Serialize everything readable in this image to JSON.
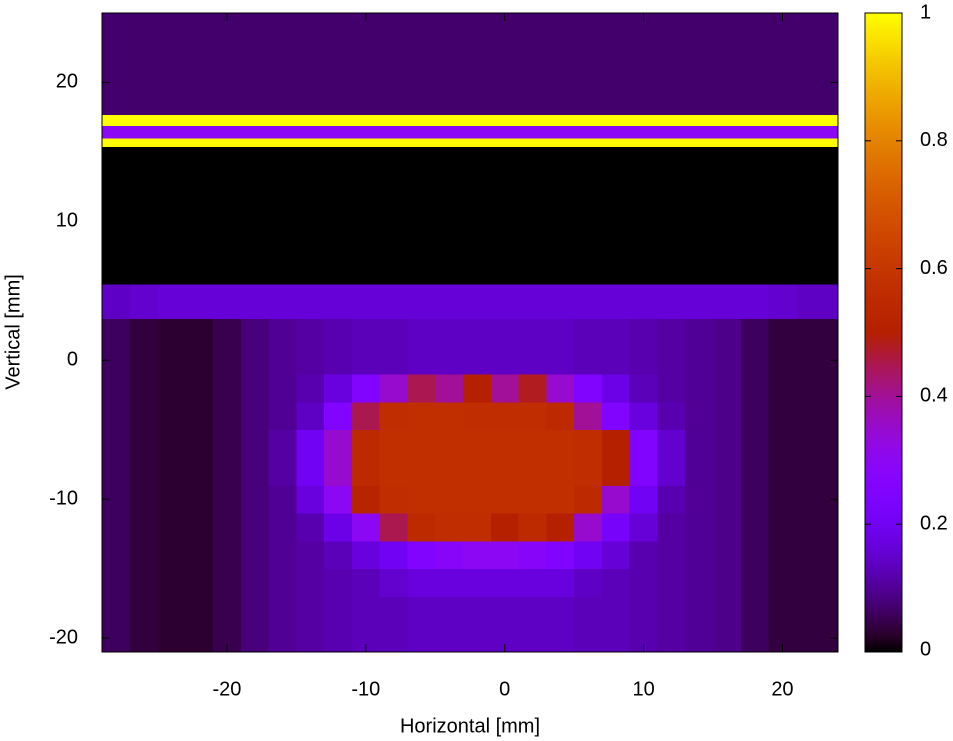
{
  "chart_data": {
    "type": "heatmap",
    "xlabel": "Horizontal [mm]",
    "ylabel": "Vertical [mm]",
    "xlim": [
      -29,
      24
    ],
    "ylim": [
      -21,
      25
    ],
    "xticks": [
      -20,
      -10,
      0,
      10,
      20
    ],
    "yticks": [
      -20,
      -10,
      0,
      10,
      20
    ],
    "clim": [
      0,
      1
    ],
    "cticks": [
      0,
      0.2,
      0.4,
      0.6,
      0.8,
      1
    ],
    "xbins": [
      -29,
      -27,
      -25,
      -23,
      -21,
      -19,
      -17,
      -15,
      -13,
      -11,
      -9,
      -7,
      -5,
      -3,
      -1,
      1,
      3,
      5,
      7,
      9,
      11,
      13,
      15,
      17,
      19,
      21,
      24
    ],
    "ybins": [
      -21,
      -19,
      -17,
      -15,
      -13,
      -11,
      -9,
      -7,
      -5,
      -3,
      -1,
      1,
      3,
      5.5,
      15.4,
      16,
      16.9,
      17.7,
      25
    ],
    "z": [
      [
        0.06,
        0.04,
        0.03,
        0.03,
        0.05,
        0.08,
        0.1,
        0.11,
        0.12,
        0.13,
        0.13,
        0.14,
        0.14,
        0.14,
        0.14,
        0.14,
        0.14,
        0.13,
        0.13,
        0.12,
        0.11,
        0.1,
        0.09,
        0.06,
        0.04,
        0.04
      ],
      [
        0.06,
        0.04,
        0.03,
        0.03,
        0.05,
        0.08,
        0.1,
        0.11,
        0.12,
        0.13,
        0.13,
        0.14,
        0.14,
        0.14,
        0.14,
        0.14,
        0.14,
        0.13,
        0.13,
        0.12,
        0.11,
        0.1,
        0.09,
        0.06,
        0.04,
        0.04
      ],
      [
        0.06,
        0.04,
        0.03,
        0.03,
        0.05,
        0.08,
        0.1,
        0.11,
        0.12,
        0.13,
        0.15,
        0.17,
        0.17,
        0.17,
        0.17,
        0.17,
        0.17,
        0.14,
        0.13,
        0.12,
        0.11,
        0.1,
        0.09,
        0.06,
        0.04,
        0.04
      ],
      [
        0.06,
        0.04,
        0.03,
        0.03,
        0.05,
        0.08,
        0.1,
        0.11,
        0.13,
        0.17,
        0.2,
        0.25,
        0.28,
        0.3,
        0.3,
        0.28,
        0.25,
        0.2,
        0.16,
        0.12,
        0.11,
        0.1,
        0.09,
        0.06,
        0.04,
        0.04
      ],
      [
        0.06,
        0.04,
        0.03,
        0.03,
        0.05,
        0.08,
        0.1,
        0.12,
        0.18,
        0.3,
        0.45,
        0.55,
        0.56,
        0.56,
        0.5,
        0.55,
        0.5,
        0.35,
        0.22,
        0.16,
        0.11,
        0.1,
        0.09,
        0.06,
        0.04,
        0.04
      ],
      [
        0.06,
        0.04,
        0.03,
        0.03,
        0.05,
        0.08,
        0.1,
        0.17,
        0.3,
        0.52,
        0.56,
        0.57,
        0.57,
        0.57,
        0.57,
        0.57,
        0.57,
        0.55,
        0.35,
        0.2,
        0.12,
        0.1,
        0.09,
        0.06,
        0.04,
        0.04
      ],
      [
        0.06,
        0.04,
        0.03,
        0.03,
        0.05,
        0.08,
        0.11,
        0.2,
        0.35,
        0.55,
        0.57,
        0.57,
        0.57,
        0.57,
        0.57,
        0.57,
        0.57,
        0.56,
        0.5,
        0.25,
        0.15,
        0.1,
        0.09,
        0.06,
        0.04,
        0.04
      ],
      [
        0.06,
        0.04,
        0.03,
        0.03,
        0.05,
        0.08,
        0.11,
        0.2,
        0.35,
        0.55,
        0.57,
        0.57,
        0.57,
        0.57,
        0.57,
        0.57,
        0.57,
        0.56,
        0.5,
        0.25,
        0.15,
        0.1,
        0.09,
        0.06,
        0.04,
        0.04
      ],
      [
        0.06,
        0.04,
        0.03,
        0.03,
        0.05,
        0.08,
        0.1,
        0.14,
        0.25,
        0.45,
        0.56,
        0.57,
        0.57,
        0.56,
        0.56,
        0.56,
        0.55,
        0.4,
        0.25,
        0.17,
        0.12,
        0.1,
        0.09,
        0.06,
        0.04,
        0.04
      ],
      [
        0.06,
        0.04,
        0.03,
        0.03,
        0.05,
        0.08,
        0.1,
        0.12,
        0.17,
        0.25,
        0.35,
        0.45,
        0.4,
        0.5,
        0.4,
        0.48,
        0.35,
        0.25,
        0.18,
        0.13,
        0.11,
        0.1,
        0.09,
        0.06,
        0.04,
        0.04
      ],
      [
        0.06,
        0.04,
        0.03,
        0.03,
        0.05,
        0.08,
        0.1,
        0.11,
        0.12,
        0.13,
        0.13,
        0.14,
        0.14,
        0.14,
        0.14,
        0.14,
        0.14,
        0.13,
        0.13,
        0.12,
        0.11,
        0.1,
        0.09,
        0.06,
        0.04,
        0.04
      ],
      [
        0.06,
        0.04,
        0.03,
        0.03,
        0.05,
        0.08,
        0.1,
        0.11,
        0.12,
        0.13,
        0.13,
        0.14,
        0.14,
        0.14,
        0.14,
        0.14,
        0.14,
        0.13,
        0.13,
        0.12,
        0.11,
        0.1,
        0.09,
        0.06,
        0.04,
        0.04
      ],
      [
        0.14,
        0.15,
        0.16,
        0.16,
        0.16,
        0.16,
        0.16,
        0.16,
        0.16,
        0.16,
        0.16,
        0.16,
        0.16,
        0.16,
        0.16,
        0.16,
        0.16,
        0.16,
        0.16,
        0.16,
        0.16,
        0.16,
        0.16,
        0.16,
        0.15,
        0.14
      ],
      [
        0,
        0,
        0,
        0,
        0,
        0,
        0,
        0,
        0,
        0,
        0,
        0,
        0,
        0,
        0,
        0,
        0,
        0,
        0,
        0,
        0,
        0,
        0,
        0,
        0,
        0
      ],
      [
        1,
        1,
        1,
        1,
        1,
        1,
        1,
        1,
        1,
        1,
        1,
        1,
        1,
        1,
        1,
        1,
        1,
        1,
        1,
        1,
        1,
        1,
        1,
        1,
        1,
        1
      ],
      [
        0.3,
        0.3,
        0.3,
        0.3,
        0.3,
        0.3,
        0.3,
        0.3,
        0.3,
        0.3,
        0.3,
        0.3,
        0.3,
        0.3,
        0.3,
        0.3,
        0.3,
        0.3,
        0.3,
        0.3,
        0.3,
        0.3,
        0.3,
        0.3,
        0.3,
        0.3
      ],
      [
        1,
        1,
        1,
        1,
        1,
        1,
        1,
        1,
        1,
        1,
        1,
        1,
        1,
        1,
        1,
        1,
        1,
        1,
        1,
        1,
        1,
        1,
        1,
        1,
        1,
        1
      ],
      [
        0.07,
        0.07,
        0.07,
        0.07,
        0.07,
        0.07,
        0.07,
        0.07,
        0.07,
        0.07,
        0.07,
        0.07,
        0.07,
        0.07,
        0.07,
        0.07,
        0.07,
        0.07,
        0.07,
        0.07,
        0.07,
        0.07,
        0.07,
        0.07,
        0.07,
        0.07
      ]
    ]
  }
}
